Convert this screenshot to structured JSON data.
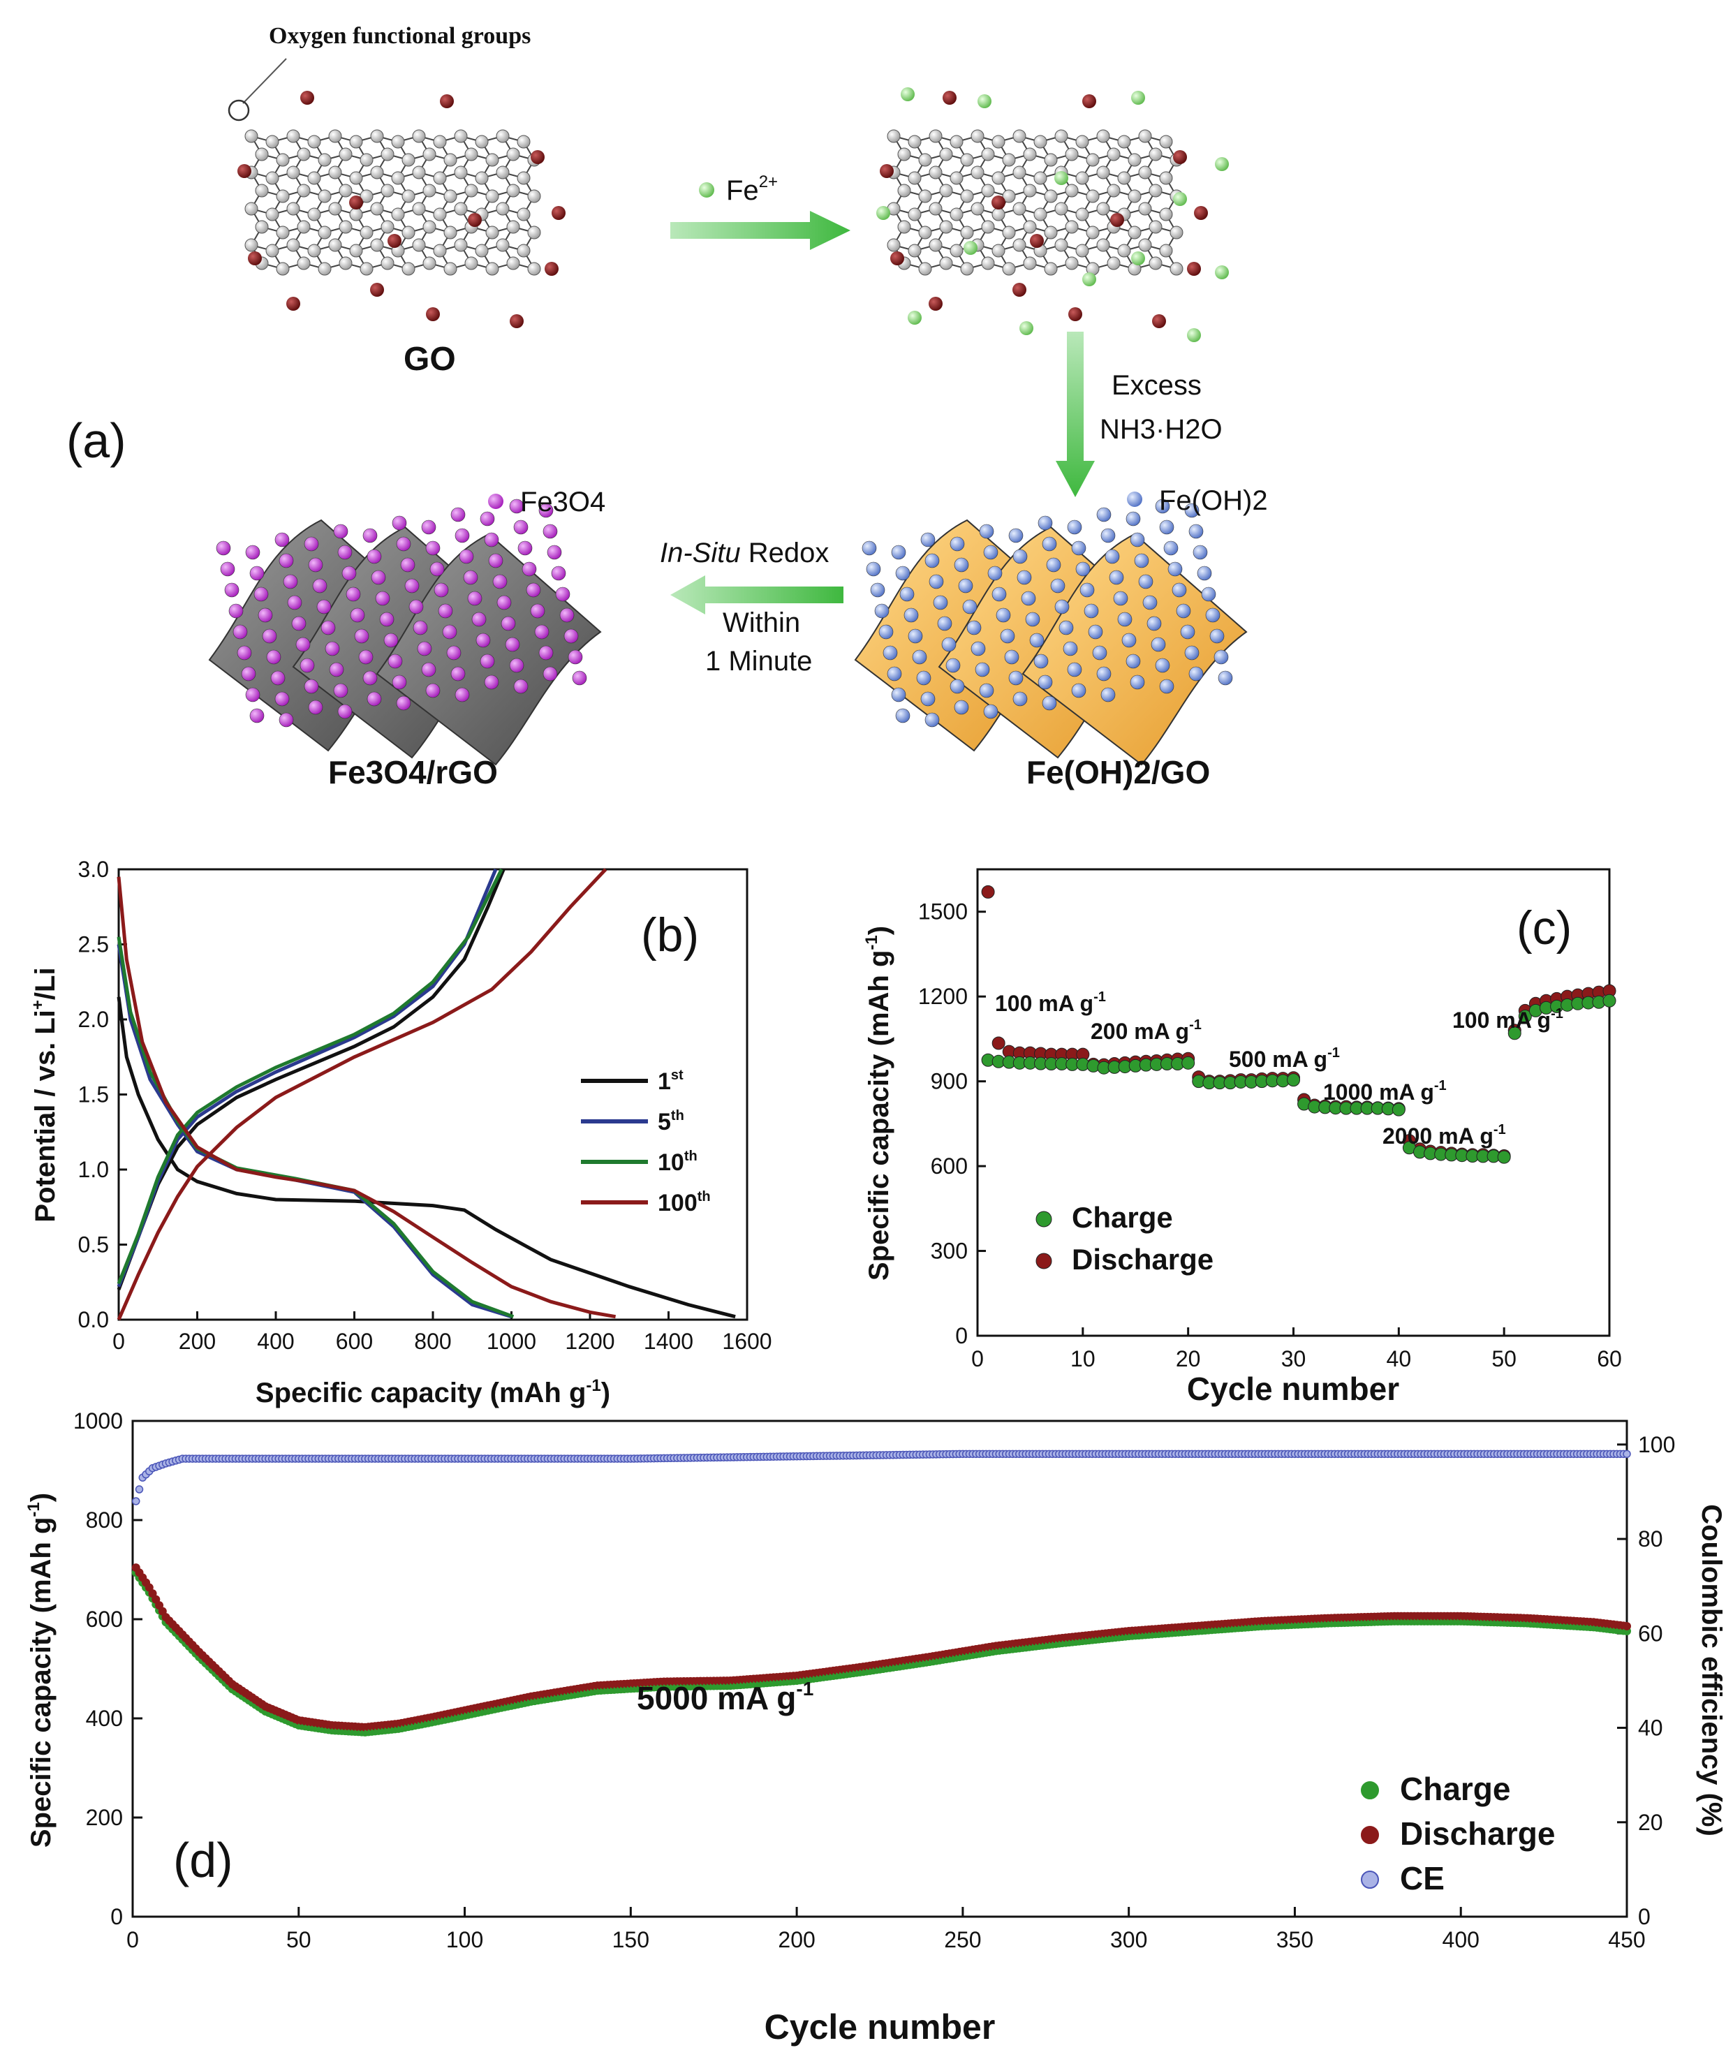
{
  "schematic": {
    "panel_label": "(a)",
    "oxygen_label": "Oxygen functional groups",
    "go_label": "GO",
    "fe2_label": "Fe",
    "fe2_charge": "2+",
    "excess_label": "Excess",
    "nh3_label": "NH3·H2O",
    "feoh2_legend": "Fe(OH)2",
    "feoh2go_label": "Fe(OH)2/GO",
    "redox_insitu": "In-Situ",
    "redox_word": "Redox",
    "within_label": "Within",
    "minute_label": "1 Minute",
    "fe3o4_legend": "Fe3O4",
    "fe3o4rgo_label": "Fe3O4/rGO",
    "colors": {
      "carbon": "#c8c8c8",
      "oxygen": "#7a1414",
      "fe2": "#8ed67a",
      "fe3o4": "#c23bd6",
      "feoh2": "#6f8fd8",
      "sheet_gray": "#6c6c6c",
      "sheet_orange": "#f2b44a",
      "arrow": "#5cc45c"
    }
  },
  "chart_data": [
    {
      "panel": "b",
      "type": "line",
      "panel_label": "(b)",
      "xlabel": "Specific capacity (mAh g-1)",
      "ylabel": "Potential / vs. Li+/Li",
      "xlim": [
        0,
        1600
      ],
      "ylim": [
        0,
        3.0
      ],
      "xticks": [
        "0",
        "200",
        "400",
        "600",
        "800",
        "1000",
        "1200",
        "1400",
        "1600"
      ],
      "yticks": [
        "0.0",
        "0.5",
        "1.0",
        "1.5",
        "2.0",
        "2.5",
        "3.0"
      ],
      "legend": [
        "1st",
        "5th",
        "10th",
        "100th"
      ],
      "legend_base": [
        "1",
        "5",
        "10",
        "100"
      ],
      "legend_sup": [
        "st",
        "th",
        "th",
        "th"
      ],
      "series": [
        {
          "name": "1st",
          "color": "#111111",
          "discharge": [
            [
              0,
              2.15
            ],
            [
              20,
              1.75
            ],
            [
              50,
              1.5
            ],
            [
              100,
              1.2
            ],
            [
              150,
              1.0
            ],
            [
              200,
              0.92
            ],
            [
              300,
              0.84
            ],
            [
              400,
              0.8
            ],
            [
              600,
              0.79
            ],
            [
              800,
              0.76
            ],
            [
              880,
              0.73
            ],
            [
              960,
              0.6
            ],
            [
              1100,
              0.4
            ],
            [
              1300,
              0.22
            ],
            [
              1450,
              0.1
            ],
            [
              1570,
              0.02
            ]
          ],
          "charge": [
            [
              0,
              0.2
            ],
            [
              50,
              0.55
            ],
            [
              100,
              0.9
            ],
            [
              150,
              1.15
            ],
            [
              200,
              1.3
            ],
            [
              300,
              1.48
            ],
            [
              400,
              1.6
            ],
            [
              600,
              1.82
            ],
            [
              700,
              1.95
            ],
            [
              800,
              2.15
            ],
            [
              880,
              2.4
            ],
            [
              940,
              2.75
            ],
            [
              980,
              3.0
            ]
          ]
        },
        {
          "name": "5th",
          "color": "#2b3a8f",
          "discharge": [
            [
              0,
              2.5
            ],
            [
              30,
              2.0
            ],
            [
              80,
              1.6
            ],
            [
              150,
              1.3
            ],
            [
              200,
              1.12
            ],
            [
              300,
              1.0
            ],
            [
              450,
              0.93
            ],
            [
              600,
              0.85
            ],
            [
              700,
              0.62
            ],
            [
              800,
              0.3
            ],
            [
              900,
              0.1
            ],
            [
              1000,
              0.02
            ]
          ],
          "charge": [
            [
              0,
              0.22
            ],
            [
              50,
              0.55
            ],
            [
              100,
              0.92
            ],
            [
              150,
              1.2
            ],
            [
              200,
              1.35
            ],
            [
              300,
              1.52
            ],
            [
              400,
              1.65
            ],
            [
              600,
              1.88
            ],
            [
              700,
              2.02
            ],
            [
              800,
              2.22
            ],
            [
              880,
              2.5
            ],
            [
              960,
              3.0
            ]
          ]
        },
        {
          "name": "10th",
          "color": "#1f7a2e",
          "discharge": [
            [
              0,
              2.55
            ],
            [
              30,
              2.05
            ],
            [
              80,
              1.65
            ],
            [
              150,
              1.32
            ],
            [
              200,
              1.14
            ],
            [
              300,
              1.01
            ],
            [
              450,
              0.94
            ],
            [
              600,
              0.86
            ],
            [
              700,
              0.64
            ],
            [
              800,
              0.32
            ],
            [
              900,
              0.12
            ],
            [
              1005,
              0.02
            ]
          ],
          "charge": [
            [
              0,
              0.24
            ],
            [
              50,
              0.57
            ],
            [
              100,
              0.95
            ],
            [
              150,
              1.23
            ],
            [
              200,
              1.38
            ],
            [
              300,
              1.55
            ],
            [
              400,
              1.68
            ],
            [
              600,
              1.9
            ],
            [
              700,
              2.04
            ],
            [
              800,
              2.25
            ],
            [
              890,
              2.55
            ],
            [
              975,
              3.0
            ]
          ]
        },
        {
          "name": "100th",
          "color": "#8b1a1a",
          "discharge": [
            [
              0,
              2.95
            ],
            [
              20,
              2.4
            ],
            [
              60,
              1.85
            ],
            [
              120,
              1.45
            ],
            [
              200,
              1.15
            ],
            [
              300,
              1.0
            ],
            [
              400,
              0.95
            ],
            [
              500,
              0.91
            ],
            [
              600,
              0.86
            ],
            [
              700,
              0.72
            ],
            [
              800,
              0.55
            ],
            [
              900,
              0.38
            ],
            [
              1000,
              0.22
            ],
            [
              1100,
              0.12
            ],
            [
              1200,
              0.05
            ],
            [
              1265,
              0.02
            ]
          ],
          "charge": [
            [
              0,
              0.0
            ],
            [
              50,
              0.3
            ],
            [
              100,
              0.58
            ],
            [
              150,
              0.82
            ],
            [
              200,
              1.02
            ],
            [
              300,
              1.28
            ],
            [
              400,
              1.48
            ],
            [
              600,
              1.75
            ],
            [
              800,
              1.98
            ],
            [
              950,
              2.2
            ],
            [
              1050,
              2.45
            ],
            [
              1150,
              2.75
            ],
            [
              1240,
              3.0
            ]
          ]
        }
      ]
    },
    {
      "panel": "c",
      "type": "scatter",
      "panel_label": "(c)",
      "xlabel": "Cycle number",
      "ylabel": "Specific capacity (mAh g-1)",
      "xlim": [
        0,
        60
      ],
      "ylim": [
        0,
        1650
      ],
      "xticks": [
        "0",
        "10",
        "20",
        "30",
        "40",
        "50",
        "60"
      ],
      "yticks": [
        "0",
        "300",
        "600",
        "900",
        "1200",
        "1500"
      ],
      "rate_labels": [
        "100 mA g",
        "200 mA g",
        "500 mA g",
        "1000 mA g",
        "2000 mA g",
        "100 mA g"
      ],
      "rate_sup": "-1",
      "legend": [
        "Charge",
        "Discharge"
      ],
      "series": [
        {
          "name": "Charge",
          "color": "#2e9a2e",
          "values": [
            975,
            970,
            968,
            965,
            965,
            963,
            962,
            962,
            960,
            960,
            955,
            948,
            950,
            952,
            955,
            958,
            960,
            962,
            962,
            965,
            900,
            895,
            895,
            895,
            898,
            898,
            900,
            902,
            902,
            905,
            820,
            810,
            808,
            806,
            805,
            805,
            805,
            805,
            803,
            800,
            665,
            650,
            645,
            642,
            640,
            638,
            636,
            635,
            635,
            632,
            1070,
            1130,
            1150,
            1160,
            1165,
            1170,
            1175,
            1178,
            1180,
            1185
          ]
        },
        {
          "name": "Discharge",
          "color": "#8b1a1a",
          "values": [
            1570,
            1035,
            1005,
            1000,
            1000,
            998,
            995,
            995,
            995,
            995,
            960,
            958,
            962,
            965,
            968,
            970,
            972,
            975,
            978,
            980,
            915,
            900,
            900,
            902,
            905,
            905,
            908,
            910,
            910,
            912,
            835,
            815,
            812,
            810,
            810,
            808,
            808,
            806,
            805,
            803,
            690,
            660,
            652,
            648,
            645,
            642,
            640,
            640,
            638,
            636,
            1080,
            1150,
            1175,
            1185,
            1192,
            1200,
            1205,
            1210,
            1215,
            1220
          ]
        }
      ]
    },
    {
      "panel": "d",
      "type": "scatter",
      "panel_label": "(d)",
      "xlabel": "Cycle number",
      "ylabel": "Specific capacity (mAh g-1)",
      "y2label": "Coulombic efficiency (%)",
      "annotation": "5000 mA g-1",
      "annotation_base": "5000 mA g",
      "annotation_sup": "-1",
      "xlim": [
        0,
        450
      ],
      "ylim": [
        0,
        1000
      ],
      "y2lim": [
        0,
        105
      ],
      "xticks": [
        "0",
        "50",
        "100",
        "150",
        "200",
        "250",
        "300",
        "350",
        "400",
        "450"
      ],
      "yticks": [
        "0",
        "200",
        "400",
        "600",
        "800",
        "1000"
      ],
      "y2ticks": [
        "0",
        "20",
        "40",
        "60",
        "80",
        "100"
      ],
      "legend": [
        "Charge",
        "Discharge",
        "CE"
      ],
      "capacity_trend": [
        [
          1,
          700
        ],
        [
          5,
          660
        ],
        [
          10,
          600
        ],
        [
          20,
          530
        ],
        [
          30,
          465
        ],
        [
          40,
          420
        ],
        [
          50,
          392
        ],
        [
          60,
          382
        ],
        [
          70,
          378
        ],
        [
          80,
          385
        ],
        [
          90,
          398
        ],
        [
          100,
          412
        ],
        [
          120,
          440
        ],
        [
          140,
          462
        ],
        [
          160,
          470
        ],
        [
          180,
          472
        ],
        [
          200,
          482
        ],
        [
          220,
          500
        ],
        [
          240,
          520
        ],
        [
          260,
          542
        ],
        [
          280,
          558
        ],
        [
          300,
          572
        ],
        [
          320,
          582
        ],
        [
          340,
          592
        ],
        [
          360,
          598
        ],
        [
          380,
          602
        ],
        [
          400,
          602
        ],
        [
          420,
          598
        ],
        [
          440,
          590
        ],
        [
          450,
          582
        ]
      ],
      "ce_trend": [
        [
          1,
          88
        ],
        [
          3,
          93
        ],
        [
          6,
          95
        ],
        [
          10,
          96
        ],
        [
          15,
          97
        ],
        [
          50,
          97
        ],
        [
          150,
          97
        ],
        [
          250,
          98
        ],
        [
          350,
          98
        ],
        [
          450,
          98
        ]
      ],
      "series": [
        {
          "name": "Charge",
          "color": "#2e9a2e"
        },
        {
          "name": "Discharge",
          "color": "#8b1a1a"
        },
        {
          "name": "CE",
          "color": "#4a55b8"
        }
      ]
    }
  ]
}
